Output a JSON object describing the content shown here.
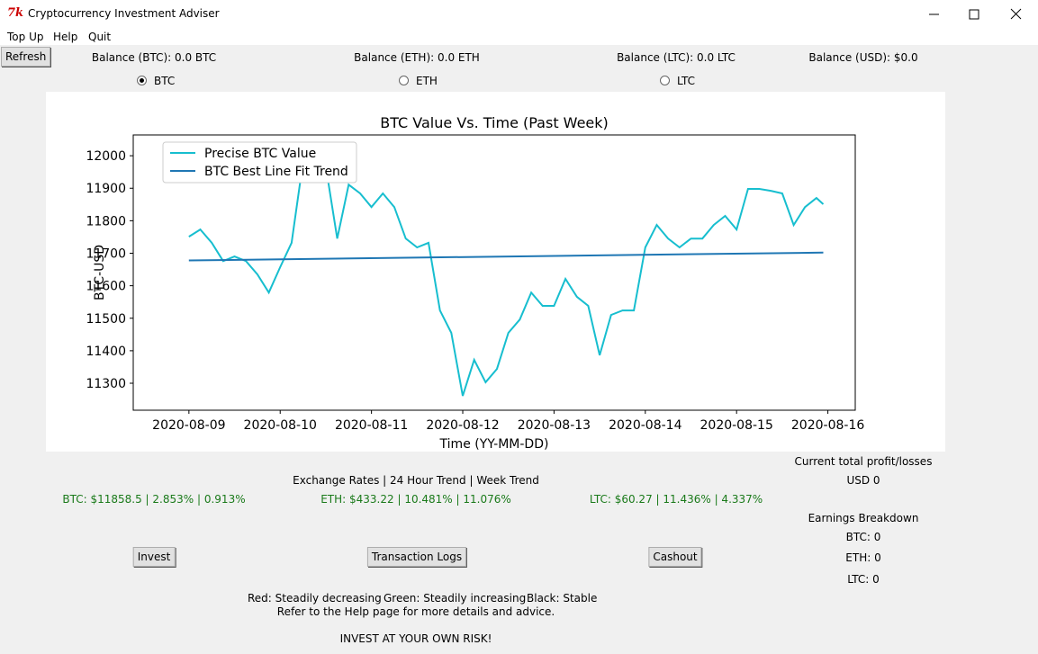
{
  "window": {
    "title": "Cryptocurrency Investment Adviser"
  },
  "menu": [
    "Top Up",
    "Help",
    "Quit"
  ],
  "refresh_button": "Refresh",
  "balances": [
    "Balance (BTC): 0.0 BTC",
    "Balance (ETH): 0.0 ETH",
    "Balance (LTC): 0.0 LTC",
    "Balance (USD): $0.0"
  ],
  "radios": [
    {
      "label": "BTC",
      "checked": true
    },
    {
      "label": "ETH",
      "checked": false
    },
    {
      "label": "LTC",
      "checked": false
    }
  ],
  "chart_data": {
    "type": "line",
    "title": "BTC Value Vs. Time (Past Week)",
    "x_label": "Time (YY-MM-DD)",
    "y_label": "BTC-USD",
    "xlim": [
      -0.61,
      7.3
    ],
    "ylim": [
      11217,
      12064
    ],
    "xticks": [
      {
        "value": 0,
        "label": "2020-08-09"
      },
      {
        "value": 1,
        "label": "2020-08-10"
      },
      {
        "value": 2,
        "label": "2020-08-11"
      },
      {
        "value": 3,
        "label": "2020-08-12"
      },
      {
        "value": 4,
        "label": "2020-08-13"
      },
      {
        "value": 5,
        "label": "2020-08-14"
      },
      {
        "value": 6,
        "label": "2020-08-15"
      },
      {
        "value": 7,
        "label": "2020-08-16"
      }
    ],
    "yticks": [
      11300,
      11400,
      11500,
      11600,
      11700,
      11800,
      11900,
      12000
    ],
    "legend": "upper left",
    "grid": false,
    "series": [
      {
        "name": "Precise BTC Value",
        "color": "#17becf",
        "x": [
          0,
          0.125,
          0.25,
          0.375,
          0.5,
          0.625,
          0.75,
          0.875,
          1,
          1.125,
          1.25,
          1.375,
          1.5,
          1.625,
          1.75,
          1.875,
          2,
          2.125,
          2.25,
          2.375,
          2.5,
          2.625,
          2.75,
          2.875,
          3,
          3.125,
          3.25,
          3.375,
          3.5,
          3.625,
          3.75,
          3.875,
          4,
          4.125,
          4.25,
          4.375,
          4.5,
          4.625,
          4.75,
          4.875,
          5,
          5.125,
          5.25,
          5.375,
          5.5,
          5.625,
          5.75,
          5.875,
          6,
          6.125,
          6.25,
          6.375,
          6.5,
          6.625,
          6.75,
          6.875,
          6.95
        ],
        "values": [
          11751,
          11773,
          11732,
          11676,
          11690,
          11676,
          11635,
          11579,
          11657,
          11732,
          11981,
          11986,
          11967,
          11745,
          11911,
          11884,
          11842,
          11884,
          11842,
          11745,
          11718,
          11732,
          11524,
          11455,
          11261,
          11372,
          11303,
          11344,
          11455,
          11496,
          11579,
          11538,
          11538,
          11621,
          11566,
          11538,
          11386,
          11510,
          11524,
          11524,
          11718,
          11787,
          11745,
          11718,
          11745,
          11745,
          11787,
          11815,
          11773,
          11898,
          11898,
          11892,
          11884,
          11787,
          11842,
          11870,
          11851
        ]
      },
      {
        "name": "BTC Best Line Fit Trend",
        "color": "#1f77b4",
        "x": [
          0,
          6.95
        ],
        "values": [
          11678,
          11702
        ]
      }
    ]
  },
  "exchange_header": "Exchange Rates | 24 Hour Trend | Week Trend",
  "rates": [
    "BTC: $11858.5 |  2.853% | 0.913%",
    "ETH: $433.22 |  10.481% | 11.076%",
    "LTC: $60.27 |  11.436% | 4.337%"
  ],
  "buttons": [
    "Invest",
    "Transaction Logs",
    "Cashout"
  ],
  "profit": {
    "title": "Current total profit/losses",
    "value": "USD 0",
    "breakdown_title": "Earnings Breakdown",
    "lines": [
      "BTC: 0",
      "ETH: 0",
      "LTC: 0"
    ]
  },
  "footer": {
    "key": [
      "Red: Steadily decreasing",
      "Green: Steadily increasing",
      "Black: Stable"
    ],
    "note": "Refer to the Help page for more details and advice.",
    "warning": "INVEST AT YOUR OWN RISK!"
  }
}
